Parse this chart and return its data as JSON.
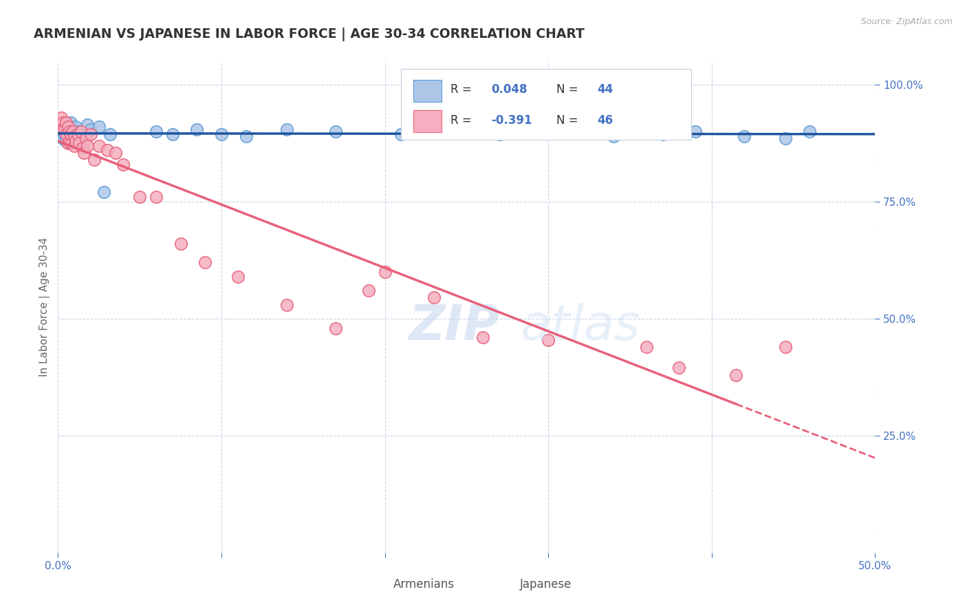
{
  "title": "ARMENIAN VS JAPANESE IN LABOR FORCE | AGE 30-34 CORRELATION CHART",
  "source_text": "Source: ZipAtlas.com",
  "ylabel": "In Labor Force | Age 30-34",
  "xlim": [
    0.0,
    0.5
  ],
  "ylim": [
    0.0,
    1.05
  ],
  "armenian_R": 0.048,
  "armenian_N": 44,
  "japanese_R": -0.391,
  "japanese_N": 46,
  "armenian_color": "#adc6e8",
  "japanese_color": "#f5afc0",
  "armenian_edge_color": "#5b9bd5",
  "japanese_edge_color": "#e8607a",
  "armenian_line_color": "#2055a0",
  "japanese_line_color": "#e8607a",
  "armenian_scatter_x": [
    0.001,
    0.002,
    0.002,
    0.003,
    0.003,
    0.004,
    0.004,
    0.005,
    0.005,
    0.006,
    0.006,
    0.007,
    0.007,
    0.008,
    0.008,
    0.009,
    0.01,
    0.01,
    0.011,
    0.012,
    0.013,
    0.015,
    0.018,
    0.02,
    0.025,
    0.028,
    0.032,
    0.06,
    0.07,
    0.085,
    0.1,
    0.115,
    0.14,
    0.17,
    0.21,
    0.24,
    0.27,
    0.31,
    0.34,
    0.37,
    0.39,
    0.42,
    0.445,
    0.46
  ],
  "armenian_scatter_y": [
    0.9,
    0.91,
    0.895,
    0.905,
    0.885,
    0.915,
    0.895,
    0.9,
    0.88,
    0.91,
    0.89,
    0.905,
    0.885,
    0.895,
    0.92,
    0.905,
    0.9,
    0.885,
    0.91,
    0.895,
    0.9,
    0.89,
    0.915,
    0.905,
    0.91,
    0.77,
    0.895,
    0.9,
    0.895,
    0.905,
    0.895,
    0.89,
    0.905,
    0.9,
    0.895,
    0.905,
    0.895,
    0.9,
    0.89,
    0.895,
    0.9,
    0.89,
    0.885,
    0.9
  ],
  "japanese_scatter_x": [
    0.001,
    0.002,
    0.003,
    0.003,
    0.004,
    0.005,
    0.005,
    0.006,
    0.006,
    0.007,
    0.007,
    0.008,
    0.008,
    0.009,
    0.01,
    0.01,
    0.011,
    0.012,
    0.013,
    0.014,
    0.015,
    0.016,
    0.017,
    0.018,
    0.02,
    0.022,
    0.025,
    0.03,
    0.035,
    0.04,
    0.05,
    0.06,
    0.075,
    0.09,
    0.11,
    0.14,
    0.17,
    0.19,
    0.2,
    0.23,
    0.26,
    0.3,
    0.36,
    0.38,
    0.415,
    0.445
  ],
  "japanese_scatter_y": [
    0.91,
    0.93,
    0.92,
    0.905,
    0.905,
    0.895,
    0.92,
    0.875,
    0.91,
    0.9,
    0.88,
    0.875,
    0.895,
    0.9,
    0.89,
    0.87,
    0.88,
    0.895,
    0.875,
    0.9,
    0.865,
    0.855,
    0.885,
    0.87,
    0.895,
    0.84,
    0.87,
    0.86,
    0.855,
    0.83,
    0.76,
    0.76,
    0.66,
    0.62,
    0.59,
    0.53,
    0.48,
    0.56,
    0.6,
    0.545,
    0.46,
    0.455,
    0.44,
    0.395,
    0.38,
    0.44
  ],
  "watermark_zip": "ZIP",
  "watermark_atlas": "atlas",
  "grid_color": "#c8d4e8",
  "background_color": "#ffffff",
  "title_color": "#333333",
  "axis_color": "#4472c4",
  "legend_box_color": "#e8eef8"
}
